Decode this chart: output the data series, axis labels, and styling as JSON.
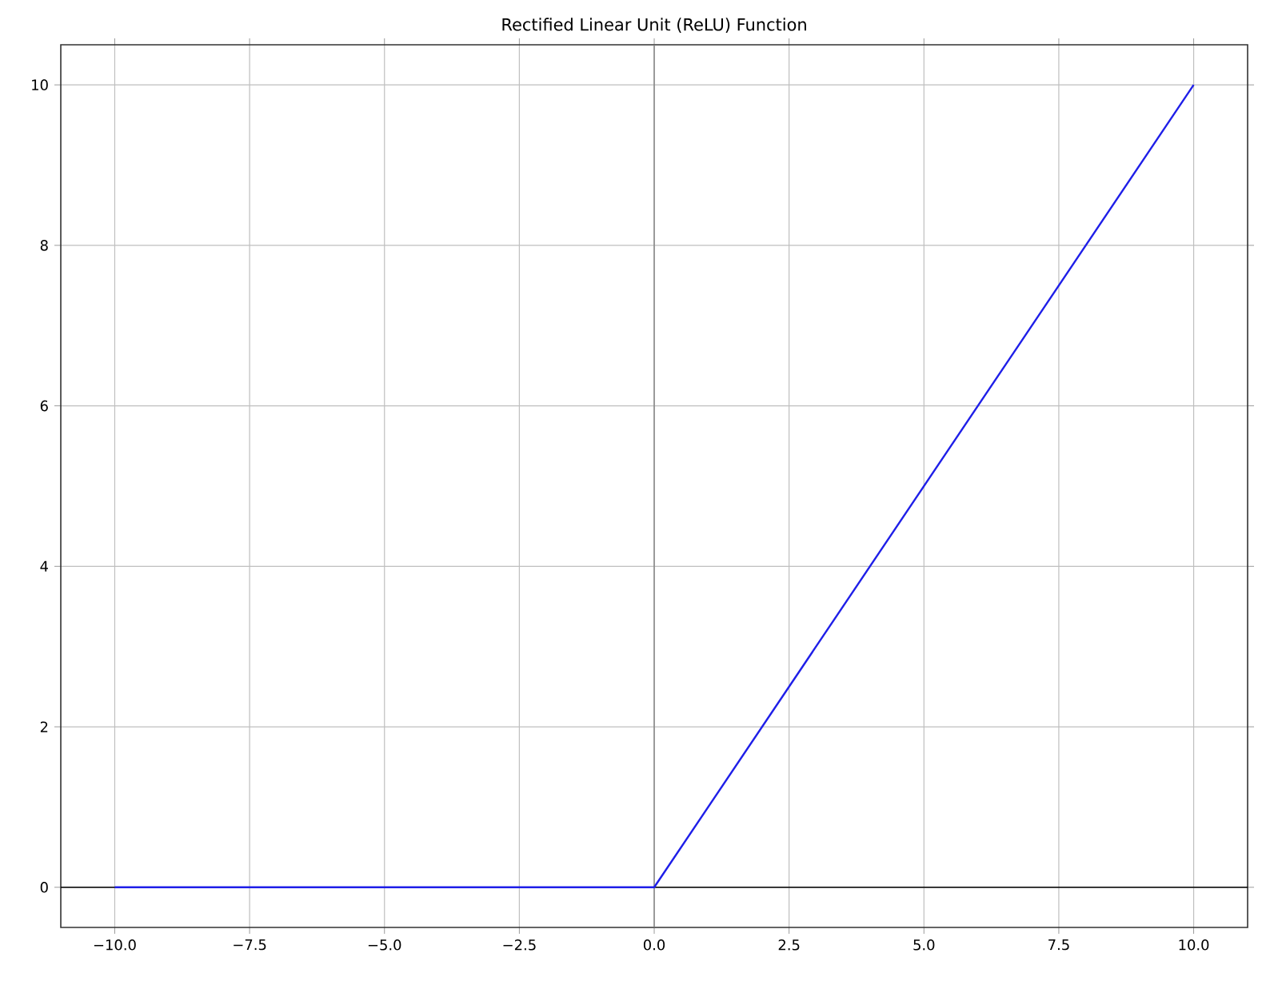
{
  "chart_data": {
    "type": "line",
    "title": "Rectified Linear Unit (ReLU) Function",
    "x": [
      -10,
      0,
      10
    ],
    "series": [
      {
        "color": "#1f1fe8",
        "values": [
          0,
          0,
          10
        ]
      }
    ],
    "xlim": [
      -11,
      11
    ],
    "ylim": [
      -0.5,
      10.5
    ],
    "xticks": [
      {
        "value": -10,
        "label": "−10.0"
      },
      {
        "value": -7.5,
        "label": "−7.5"
      },
      {
        "value": -5,
        "label": "−5.0"
      },
      {
        "value": -2.5,
        "label": "−2.5"
      },
      {
        "value": 0,
        "label": "0.0"
      },
      {
        "value": 2.5,
        "label": "2.5"
      },
      {
        "value": 5,
        "label": "5.0"
      },
      {
        "value": 7.5,
        "label": "7.5"
      },
      {
        "value": 10,
        "label": "10.0"
      }
    ],
    "yticks": [
      0,
      2,
      4,
      6,
      8,
      10
    ],
    "ref_lines": [
      {
        "axis": "y",
        "value": 0,
        "color": "#000000"
      },
      {
        "axis": "x",
        "value": 0,
        "color": "#808080"
      }
    ],
    "grid": true,
    "marker": "none",
    "line_style": "solid"
  }
}
